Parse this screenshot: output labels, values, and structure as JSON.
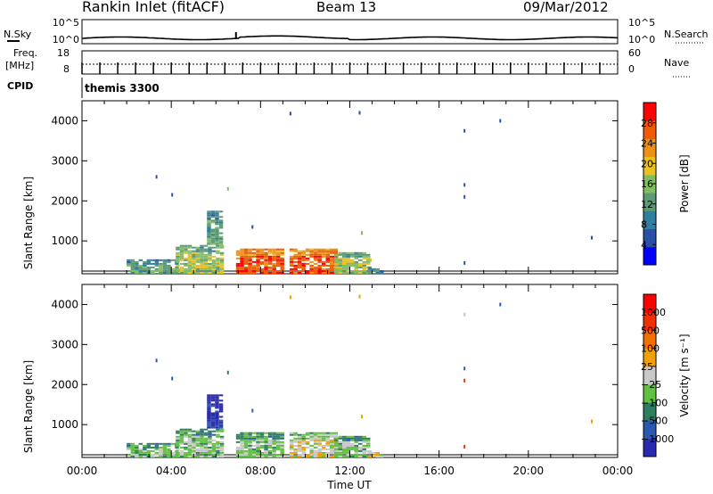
{
  "header": {
    "station": "Rankin Inlet (fitACF)",
    "beam": "Beam 13",
    "date": "09/Mar/2012"
  },
  "top_panels": {
    "nsky_label": "N.Sky",
    "nsearch_label": "N.Search",
    "nsky_ticks": [
      "10^5",
      "10^0"
    ],
    "nsky_right_ticks": [
      "10^5",
      "10^0"
    ],
    "freq_label": "Freq.",
    "freq_unit": "[MHz]",
    "freq_ticks": [
      "18",
      "8"
    ],
    "nave_label": "Nave",
    "nave_ticks": [
      "60",
      "0"
    ],
    "cpid_label": "CPID",
    "cpid_text": "themis 3300"
  },
  "colors": {
    "power_scale": [
      "#0000ff",
      "#2a4fa8",
      "#2e7fa0",
      "#5a9a74",
      "#80bf60",
      "#e8c020",
      "#f09010",
      "#f05a00",
      "#ff0000"
    ],
    "velocity_scale": [
      "#2a2ab0",
      "#2a5ab0",
      "#2e7f60",
      "#60c040",
      "#c8c8c8",
      "#f0a000",
      "#f07000",
      "#f03000",
      "#ff0000"
    ]
  },
  "chart_data": [
    {
      "type": "heatmap",
      "name": "Power",
      "colorbar_label": "Power [dB]",
      "colorbar_ticks": [
        "28",
        "24",
        "20",
        "16",
        "12",
        "8",
        "4"
      ],
      "ylabel": "Slant Range [km]",
      "yticks": [
        "4000",
        "3000",
        "2000",
        "1000"
      ],
      "ylim": [
        180,
        4500
      ],
      "xlim": [
        0,
        24
      ],
      "patches": [
        {
          "t0": 2.0,
          "t1": 4.2,
          "r0": 180,
          "r1": 500,
          "level": 3
        },
        {
          "t0": 4.2,
          "t1": 6.3,
          "r0": 180,
          "r1": 900,
          "level": 4
        },
        {
          "t0": 5.6,
          "t1": 6.3,
          "r0": 900,
          "r1": 1750,
          "level": 3
        },
        {
          "t0": 6.9,
          "t1": 9.0,
          "r0": 180,
          "r1": 800,
          "level": 7
        },
        {
          "t0": 9.3,
          "t1": 11.3,
          "r0": 180,
          "r1": 800,
          "level": 7
        },
        {
          "t0": 11.3,
          "t1": 12.8,
          "r0": 180,
          "r1": 700,
          "level": 4
        },
        {
          "t0": 12.8,
          "t1": 13.5,
          "r0": 180,
          "r1": 350,
          "level": 2
        }
      ],
      "dots": [
        {
          "t": 3.3,
          "r": 2600,
          "level": 1
        },
        {
          "t": 4.0,
          "r": 2150,
          "level": 1
        },
        {
          "t": 6.5,
          "r": 2300,
          "level": 4
        },
        {
          "t": 7.6,
          "r": 1350,
          "level": 1
        },
        {
          "t": 9.3,
          "r": 4180,
          "level": 1
        },
        {
          "t": 12.4,
          "r": 4200,
          "level": 1
        },
        {
          "t": 12.5,
          "r": 1200,
          "level": 4
        },
        {
          "t": 12.9,
          "r": 520,
          "level": 5
        },
        {
          "t": 17.1,
          "r": 3750,
          "level": 1
        },
        {
          "t": 17.1,
          "r": 2400,
          "level": 1
        },
        {
          "t": 17.1,
          "r": 2100,
          "level": 1
        },
        {
          "t": 17.1,
          "r": 450,
          "level": 1
        },
        {
          "t": 18.7,
          "r": 4000,
          "level": 1
        },
        {
          "t": 22.8,
          "r": 1080,
          "level": 1
        }
      ]
    },
    {
      "type": "heatmap",
      "name": "Velocity",
      "colorbar_label": "Velocity [m s⁻¹]",
      "colorbar_ticks": [
        "1000",
        "500",
        "100",
        "25",
        "−25",
        "−100",
        "−500",
        "−1000"
      ],
      "ylabel": "Slant Range [km]",
      "yticks": [
        "4000",
        "3000",
        "2000",
        "1000"
      ],
      "ylim": [
        180,
        4500
      ],
      "xlim": [
        0,
        24
      ],
      "xlabel": "Time UT",
      "xticks": [
        "00:00",
        "04:00",
        "08:00",
        "12:00",
        "16:00",
        "20:00",
        "00:00"
      ],
      "patches": [
        {
          "t0": 2.0,
          "t1": 4.2,
          "r0": 180,
          "r1": 500,
          "level": 3
        },
        {
          "t0": 4.2,
          "t1": 6.3,
          "r0": 180,
          "r1": 900,
          "level": 3
        },
        {
          "t0": 5.6,
          "t1": 6.3,
          "r0": 900,
          "r1": 1750,
          "level": 0
        },
        {
          "t0": 6.9,
          "t1": 9.0,
          "r0": 180,
          "r1": 800,
          "level": 3
        },
        {
          "t0": 9.3,
          "t1": 11.3,
          "r0": 180,
          "r1": 800,
          "level": 4
        },
        {
          "t0": 11.3,
          "t1": 12.8,
          "r0": 180,
          "r1": 700,
          "level": 3
        },
        {
          "t0": 12.8,
          "t1": 13.5,
          "r0": 180,
          "r1": 350,
          "level": 4
        }
      ],
      "dots": [
        {
          "t": 3.3,
          "r": 2600,
          "level": 1
        },
        {
          "t": 4.0,
          "r": 2150,
          "level": 1
        },
        {
          "t": 6.5,
          "r": 2300,
          "level": 2
        },
        {
          "t": 7.6,
          "r": 1350,
          "level": 1
        },
        {
          "t": 9.3,
          "r": 4180,
          "level": 5
        },
        {
          "t": 12.4,
          "r": 4200,
          "level": 5
        },
        {
          "t": 12.5,
          "r": 1200,
          "level": 5
        },
        {
          "t": 17.1,
          "r": 3750,
          "level": 4
        },
        {
          "t": 17.1,
          "r": 2400,
          "level": 1
        },
        {
          "t": 17.1,
          "r": 2100,
          "level": 7
        },
        {
          "t": 17.1,
          "r": 450,
          "level": 7
        },
        {
          "t": 18.7,
          "r": 4000,
          "level": 1
        },
        {
          "t": 22.8,
          "r": 1080,
          "level": 5
        }
      ]
    }
  ]
}
